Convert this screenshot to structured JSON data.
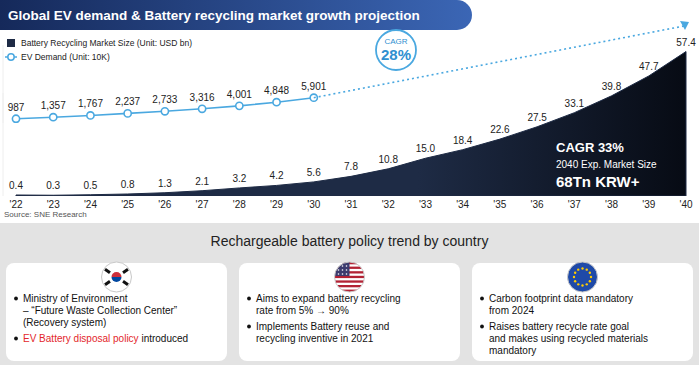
{
  "title": "Global EV demand & Battery recycling market growth projection",
  "source": "Source: SNE Research",
  "chart_data": [
    {
      "type": "area",
      "categories": [
        "'22",
        "'23",
        "'24",
        "'25",
        "'26",
        "'27",
        "'28",
        "'29",
        "'30",
        "'31",
        "'32",
        "'33",
        "'34",
        "'35",
        "'36",
        "'37",
        "'38",
        "'39",
        "'40"
      ],
      "series": [
        {
          "name": "Battery Recycling Market Size (Unit: USD bn)",
          "color": "#1e2b45",
          "values": [
            0.4,
            0.3,
            0.5,
            0.8,
            1.3,
            2.1,
            3.2,
            4.2,
            5.6,
            7.8,
            10.8,
            15.0,
            18.4,
            22.6,
            27.5,
            33.1,
            39.8,
            47.7,
            57.4
          ],
          "value_labels": [
            "0.4",
            "0.3",
            "0.5",
            "0.8",
            "1.3",
            "2.1",
            "3.2",
            "4.2",
            "5.6",
            "7.8",
            "10.8",
            "15.0",
            "18.4",
            "22.6",
            "27.5",
            "33.1",
            "39.8",
            "47.7",
            "57.4"
          ]
        }
      ],
      "ylim": [
        0,
        60
      ],
      "tick_labels": "x",
      "grid": false,
      "data_labels": true,
      "legend": "upper left",
      "annotations": [
        {
          "lines": [
            "CAGR 33%",
            "2040 Exp. Market Size",
            "68Tn KRW+"
          ]
        }
      ]
    },
    {
      "type": "line",
      "categories": [
        "'22",
        "'23",
        "'24",
        "'25",
        "'26",
        "'27",
        "'28",
        "'29",
        "'30",
        "'31",
        "'32",
        "'33",
        "'34",
        "'35",
        "'36",
        "'37",
        "'38",
        "'39",
        "'40"
      ],
      "series": [
        {
          "name": "EV Demand (Unit: 10K)",
          "color": "#4aa8e0",
          "marker": "circle",
          "values": [
            987,
            1357,
            1767,
            2237,
            2733,
            3316,
            4001,
            4848,
            5901,
            null,
            null,
            null,
            null,
            null,
            null,
            null,
            null,
            null,
            null
          ],
          "value_labels": [
            "987",
            "1,357",
            "1,767",
            "2,237",
            "2,733",
            "3,316",
            "4,001",
            "4,848",
            "5,901",
            null,
            null,
            null,
            null,
            null,
            null,
            null,
            null,
            null,
            null
          ]
        }
      ],
      "ylim": [
        0,
        7000
      ],
      "tick_labels": false,
      "grid": false,
      "data_labels": true,
      "legend": "upper left",
      "annotations": [
        {
          "lines": [
            "CAGR",
            "28%"
          ]
        }
      ]
    }
  ],
  "policy": {
    "title": "Rechargeable battery policy trend by country",
    "boxes": [
      {
        "items": [
          {
            "lines": [
              "Ministry of Environment",
              "– “Future Waste Collection Center”",
              "(Recovery system)"
            ]
          },
          {
            "lines": [
              [
                {
                  "text": "EV Battery disposal policy",
                  "color": "#e3262b"
                },
                {
                  "text": " introduced"
                }
              ]
            ]
          }
        ]
      },
      {
        "items": [
          {
            "lines": [
              "Aims to expand battery recycling",
              "rate from 5% → 90%"
            ]
          },
          {
            "lines": [
              "Implements Battery reuse and",
              "recycling inventive in 2021"
            ]
          }
        ]
      },
      {
        "items": [
          {
            "lines": [
              "Carbon footprint data mandatory",
              "from 2024"
            ]
          },
          {
            "lines": [
              "Raises battery recycle rate goal",
              "and makes using recycled materials",
              "mandatory"
            ]
          }
        ]
      }
    ]
  }
}
